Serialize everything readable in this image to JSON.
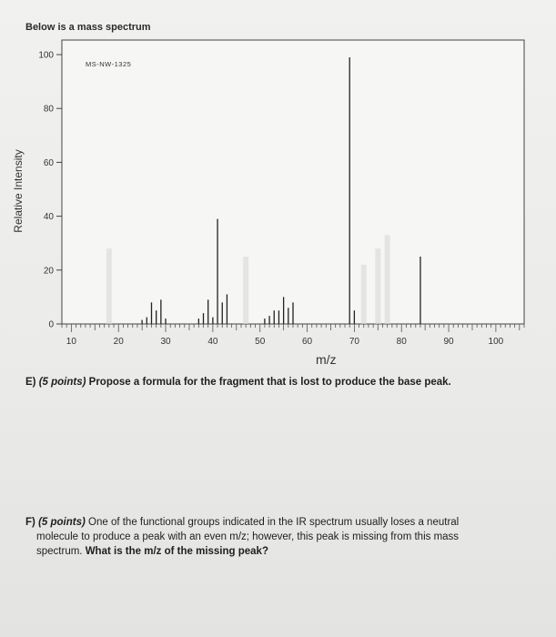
{
  "heading": "Below is a mass spectrum",
  "chart_data": {
    "type": "bar",
    "title": "",
    "spectrum_id": "MS-NW-1325",
    "xlabel": "m/z",
    "ylabel": "Relative Intensity",
    "xlim": [
      8,
      106
    ],
    "ylim": [
      0,
      100
    ],
    "xticks": [
      10,
      20,
      30,
      40,
      50,
      60,
      70,
      80,
      90,
      100
    ],
    "yticks": [
      0,
      20,
      40,
      60,
      80,
      100
    ],
    "grid": false,
    "peaks": [
      {
        "mz": 25,
        "intensity": 1.5
      },
      {
        "mz": 26,
        "intensity": 2.5
      },
      {
        "mz": 27,
        "intensity": 8
      },
      {
        "mz": 28,
        "intensity": 5
      },
      {
        "mz": 29,
        "intensity": 9
      },
      {
        "mz": 30,
        "intensity": 2
      },
      {
        "mz": 37,
        "intensity": 2
      },
      {
        "mz": 38,
        "intensity": 4
      },
      {
        "mz": 39,
        "intensity": 9
      },
      {
        "mz": 40,
        "intensity": 2.5
      },
      {
        "mz": 41,
        "intensity": 39
      },
      {
        "mz": 42,
        "intensity": 8
      },
      {
        "mz": 43,
        "intensity": 11
      },
      {
        "mz": 51,
        "intensity": 2
      },
      {
        "mz": 52,
        "intensity": 3
      },
      {
        "mz": 53,
        "intensity": 5
      },
      {
        "mz": 54,
        "intensity": 5
      },
      {
        "mz": 55,
        "intensity": 10
      },
      {
        "mz": 56,
        "intensity": 6
      },
      {
        "mz": 57,
        "intensity": 8
      },
      {
        "mz": 69,
        "intensity": 99
      },
      {
        "mz": 70,
        "intensity": 5
      },
      {
        "mz": 84,
        "intensity": 25
      }
    ]
  },
  "questions": {
    "e": {
      "label": "E)",
      "points": "(5 points)",
      "text": "Propose a formula for the fragment that is lost to produce the base peak."
    },
    "f": {
      "label": "F)",
      "points": "(5 points)",
      "text_line1": "One of the functional groups indicated in the IR spectrum usually loses a neutral",
      "text_line2": "molecule to produce a peak with an even m/z; however, this peak is missing from this mass",
      "text_line3_plain": "spectrum.",
      "text_line3_bold": "What is the m/z of the missing peak?"
    }
  }
}
